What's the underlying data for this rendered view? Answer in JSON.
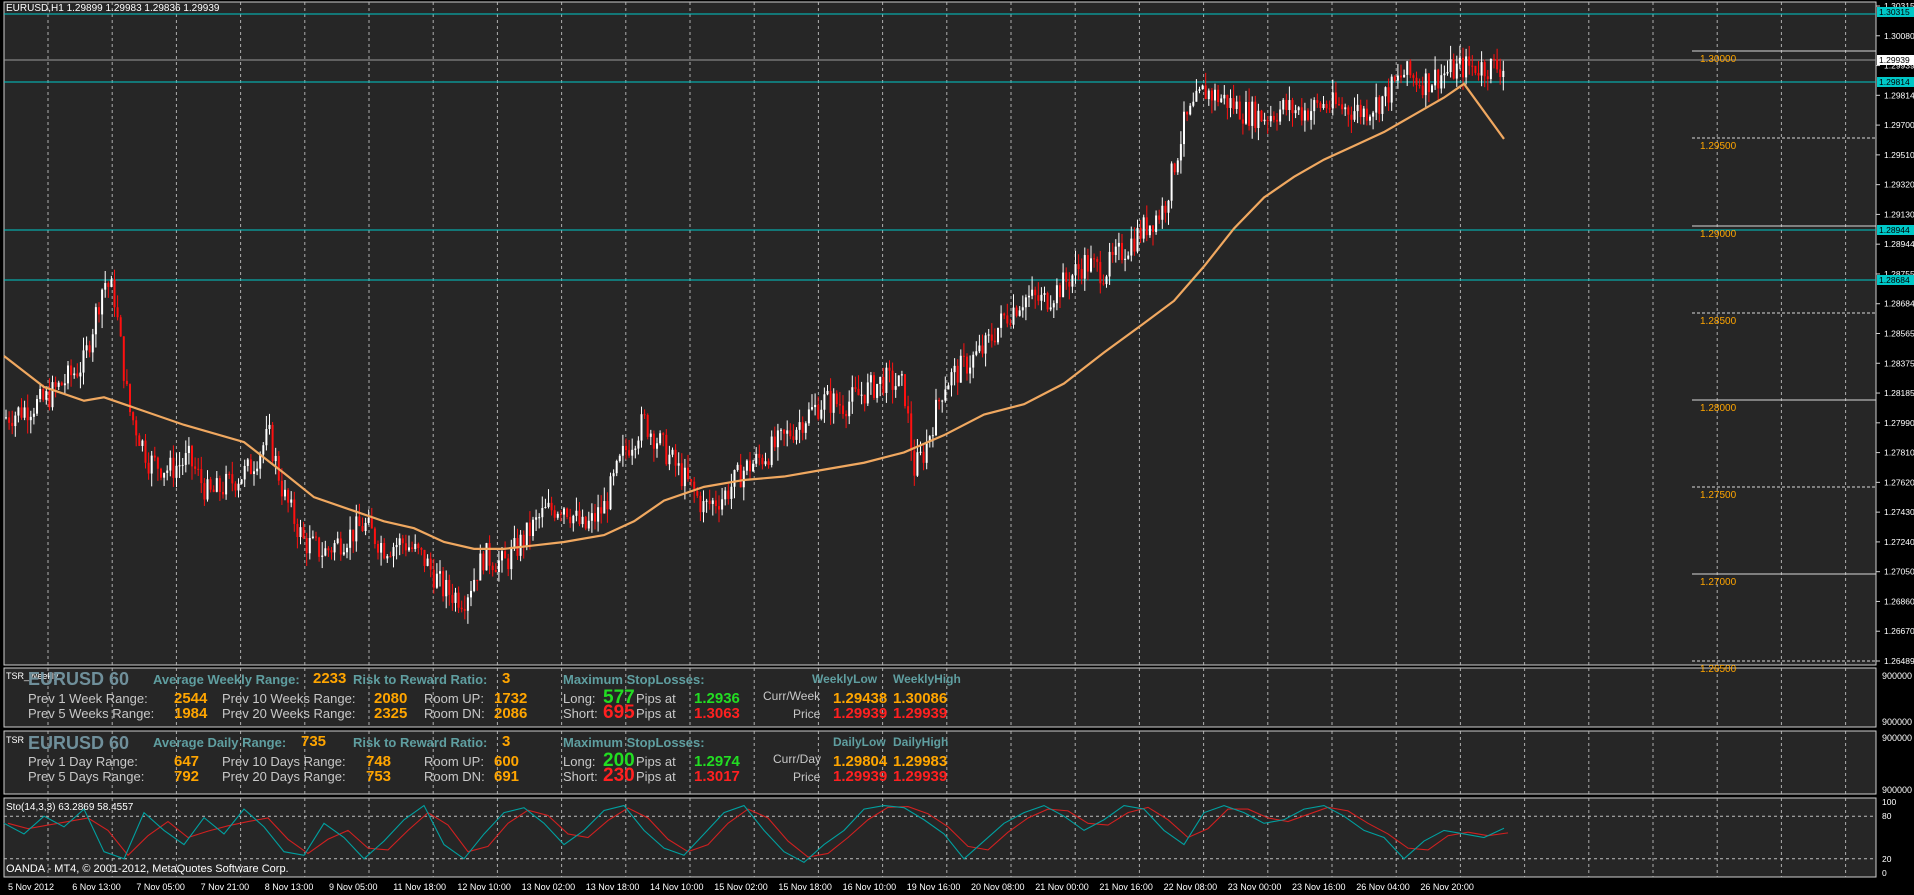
{
  "main_header": "EURUSD,H1  1.29899 1.29983 1.29836 1.29939",
  "stoch_header": "Sto(14,3,3) 63.2869 58.4557",
  "copyright": "OANDA - MT4, © 2001-2012, MetaQuotes Software Corp.",
  "colors": {
    "bg": "#000000",
    "plot": "#262626",
    "ma": "#f0a860",
    "cyan": "#00c8c8",
    "bull": "#ffffff",
    "bear": "#ff1010",
    "stoch_main": "#00a0a0",
    "stoch_signal": "#d02020"
  },
  "x_labels": [
    "5 Nov 2012",
    "6 Nov 13:00",
    "7 Nov 05:00",
    "7 Nov 21:00",
    "8 Nov 13:00",
    "9 Nov 05:00",
    "11 Nov 18:00",
    "12 Nov 10:00",
    "13 Nov 02:00",
    "13 Nov 18:00",
    "14 Nov 10:00",
    "15 Nov 02:00",
    "15 Nov 18:00",
    "16 Nov 10:00",
    "19 Nov 16:00",
    "20 Nov 08:00",
    "21 Nov 00:00",
    "21 Nov 16:00",
    "22 Nov 08:00",
    "23 Nov 00:00",
    "23 Nov 16:00",
    "26 Nov 04:00",
    "26 Nov 20:00"
  ],
  "y_labels": [
    "1.30315",
    "1.30080",
    "1.29939",
    "1.29814",
    "1.29700",
    "1.29510",
    "1.29320",
    "1.29130",
    "1.28944",
    "1.28755",
    "1.28684",
    "1.28565",
    "1.28375",
    "1.28185",
    "1.27990",
    "1.27810",
    "1.27620",
    "1.27430",
    "1.27240",
    "1.27050",
    "1.26860",
    "1.26670",
    "1.26489"
  ],
  "y_hl": [
    "1.30315",
    "1.29939",
    "1.29814",
    "1.28944",
    "1.28684"
  ],
  "level_labels": [
    "1.30000",
    "1.29500",
    "1.29000",
    "1.28500",
    "1.28000",
    "1.27500",
    "1.27000",
    "1.26500"
  ],
  "weekly": {
    "symbol": "EURUSD 60",
    "tag": "TSR_Weekly",
    "avg_label": "Average Weekly Range:",
    "avg_val": "2233",
    "rr_label": "Risk to Reward Ratio:",
    "rr_val": "3",
    "msl_label": "Maximum StopLosses:",
    "p1_label": "Prev 1 Week Range:",
    "p1_val": "2544",
    "p5_label": "Prev 5 Weeks Range:",
    "p5_val": "1984",
    "p10_label": "Prev 10 Weeks Range:",
    "p10_val": "2080",
    "p20_label": "Prev 20 Weeks Range:",
    "p20_val": "2325",
    "up_label": "Room UP:",
    "up_val": "1732",
    "dn_label": "Room DN:",
    "dn_val": "2086",
    "long_label": "Long:",
    "long_val": "577",
    "long_pips": "Pips at",
    "long_price": "1.2936",
    "short_label": "Short:",
    "short_val": "695",
    "short_pips": "Pips at",
    "short_price": "1.3063",
    "low_hdr": "WeeklyLow",
    "high_hdr": "WeeklyHigh",
    "cur_label": "Curr/Week",
    "price_label": "Price",
    "cur_low": "1.29438",
    "cur_high": "1.30086",
    "price_low": "1.29939",
    "price_high": "1.29939",
    "axis_top": "900000",
    "axis_bot": "900000"
  },
  "daily": {
    "symbol": "EURUSD 60",
    "tag": "TSR",
    "avg_label": "Average Daily Range:",
    "avg_val": "735",
    "rr_label": "Risk to Reward Ratio:",
    "rr_val": "3",
    "msl_label": "Maximum StopLosses:",
    "p1_label": "Prev 1 Day Range:",
    "p1_val": "647",
    "p5_label": "Prev 5 Days Range:",
    "p5_val": "792",
    "p10_label": "Prev 10 Days Range:",
    "p10_val": "748",
    "p20_label": "Prev 20 Days Range:",
    "p20_val": "753",
    "up_label": "Room UP:",
    "up_val": "600",
    "dn_label": "Room DN:",
    "dn_val": "691",
    "long_label": "Long:",
    "long_val": "200",
    "long_pips": "Pips at",
    "long_price": "1.2974",
    "short_label": "Short:",
    "short_val": "230",
    "short_pips": "Pips at",
    "short_price": "1.3017",
    "low_hdr": "DailyLow",
    "high_hdr": "DailyHigh",
    "cur_label": "Curr/Day",
    "price_label": "Price",
    "cur_low": "1.29804",
    "cur_high": "1.29983",
    "price_low": "1.29939",
    "price_high": "1.29939",
    "axis_top": "900000",
    "axis_bot": "900000"
  },
  "stoch_levels": [
    "100",
    "80",
    "20",
    "0"
  ],
  "chart_data": {
    "type": "line",
    "title": "EURUSD,H1",
    "y_range": [
      1.26489,
      1.30315
    ],
    "close_path": [
      [
        0,
        1.279
      ],
      [
        40,
        1.28
      ],
      [
        80,
        1.2822
      ],
      [
        100,
        1.287
      ],
      [
        110,
        1.2862
      ],
      [
        125,
        1.2795
      ],
      [
        145,
        1.2765
      ],
      [
        165,
        1.276
      ],
      [
        185,
        1.2766
      ],
      [
        205,
        1.2745
      ],
      [
        225,
        1.2752
      ],
      [
        245,
        1.276
      ],
      [
        265,
        1.278
      ],
      [
        280,
        1.2745
      ],
      [
        300,
        1.2718
      ],
      [
        320,
        1.2712
      ],
      [
        340,
        1.272
      ],
      [
        360,
        1.2728
      ],
      [
        380,
        1.2715
      ],
      [
        400,
        1.2718
      ],
      [
        420,
        1.2708
      ],
      [
        440,
        1.269
      ],
      [
        460,
        1.2685
      ],
      [
        480,
        1.271
      ],
      [
        500,
        1.2705
      ],
      [
        520,
        1.272
      ],
      [
        540,
        1.2735
      ],
      [
        560,
        1.274
      ],
      [
        580,
        1.2725
      ],
      [
        600,
        1.2738
      ],
      [
        620,
        1.277
      ],
      [
        640,
        1.2788
      ],
      [
        660,
        1.2772
      ],
      [
        680,
        1.2755
      ],
      [
        700,
        1.2738
      ],
      [
        720,
        1.2745
      ],
      [
        740,
        1.276
      ],
      [
        760,
        1.2768
      ],
      [
        780,
        1.2778
      ],
      [
        800,
        1.279
      ],
      [
        820,
        1.28
      ],
      [
        840,
        1.2798
      ],
      [
        860,
        1.2805
      ],
      [
        880,
        1.2812
      ],
      [
        900,
        1.2808
      ],
      [
        910,
        1.276
      ],
      [
        920,
        1.277
      ],
      [
        940,
        1.281
      ],
      [
        960,
        1.282
      ],
      [
        980,
        1.283
      ],
      [
        1000,
        1.2848
      ],
      [
        1020,
        1.286
      ],
      [
        1040,
        1.2858
      ],
      [
        1060,
        1.2868
      ],
      [
        1080,
        1.288
      ],
      [
        1100,
        1.2875
      ],
      [
        1120,
        1.2888
      ],
      [
        1140,
        1.29
      ],
      [
        1160,
        1.2912
      ],
      [
        1180,
        1.296
      ],
      [
        1200,
        1.298
      ],
      [
        1220,
        1.2975
      ],
      [
        1240,
        1.2968
      ],
      [
        1260,
        1.2965
      ],
      [
        1280,
        1.297
      ],
      [
        1300,
        1.2968
      ],
      [
        1320,
        1.2972
      ],
      [
        1340,
        1.297
      ],
      [
        1360,
        1.2968
      ],
      [
        1380,
        1.2976
      ],
      [
        1400,
        1.299
      ],
      [
        1420,
        1.2985
      ],
      [
        1440,
        1.299
      ],
      [
        1460,
        1.2994
      ]
    ],
    "ma_path": [
      [
        0,
        1.2826
      ],
      [
        40,
        1.2808
      ],
      [
        80,
        1.28
      ],
      [
        100,
        1.2802
      ],
      [
        130,
        1.2796
      ],
      [
        180,
        1.2786
      ],
      [
        240,
        1.2776
      ],
      [
        280,
        1.2758
      ],
      [
        310,
        1.2744
      ],
      [
        350,
        1.2736
      ],
      [
        380,
        1.273
      ],
      [
        410,
        1.2726
      ],
      [
        440,
        1.2718
      ],
      [
        470,
        1.2714
      ],
      [
        500,
        1.2714
      ],
      [
        530,
        1.2716
      ],
      [
        560,
        1.2718
      ],
      [
        600,
        1.2722
      ],
      [
        630,
        1.273
      ],
      [
        660,
        1.2742
      ],
      [
        700,
        1.275
      ],
      [
        740,
        1.2754
      ],
      [
        780,
        1.2756
      ],
      [
        820,
        1.276
      ],
      [
        860,
        1.2764
      ],
      [
        900,
        1.277
      ],
      [
        940,
        1.278
      ],
      [
        980,
        1.2792
      ],
      [
        1020,
        1.2798
      ],
      [
        1060,
        1.281
      ],
      [
        1100,
        1.2828
      ],
      [
        1140,
        1.2845
      ],
      [
        1170,
        1.2858
      ],
      [
        1200,
        1.2878
      ],
      [
        1230,
        1.29
      ],
      [
        1260,
        1.2918
      ],
      [
        1290,
        1.293
      ],
      [
        1320,
        1.294
      ],
      [
        1350,
        1.2948
      ],
      [
        1380,
        1.2956
      ],
      [
        1410,
        1.2966
      ],
      [
        1440,
        1.2976
      ],
      [
        1460,
        1.2984
      ],
      [
        1500,
        1.2952
      ]
    ],
    "stoch_main": [
      [
        0,
        70
      ],
      [
        20,
        55
      ],
      [
        40,
        80
      ],
      [
        60,
        65
      ],
      [
        80,
        90
      ],
      [
        100,
        30
      ],
      [
        120,
        20
      ],
      [
        140,
        85
      ],
      [
        160,
        60
      ],
      [
        180,
        40
      ],
      [
        200,
        78
      ],
      [
        220,
        55
      ],
      [
        240,
        90
      ],
      [
        260,
        65
      ],
      [
        280,
        30
      ],
      [
        300,
        25
      ],
      [
        320,
        70
      ],
      [
        340,
        50
      ],
      [
        360,
        20
      ],
      [
        380,
        45
      ],
      [
        400,
        75
      ],
      [
        420,
        95
      ],
      [
        440,
        40
      ],
      [
        460,
        20
      ],
      [
        480,
        55
      ],
      [
        500,
        85
      ],
      [
        520,
        92
      ],
      [
        540,
        70
      ],
      [
        560,
        40
      ],
      [
        580,
        60
      ],
      [
        600,
        88
      ],
      [
        620,
        95
      ],
      [
        640,
        60
      ],
      [
        660,
        35
      ],
      [
        680,
        25
      ],
      [
        700,
        55
      ],
      [
        720,
        85
      ],
      [
        740,
        95
      ],
      [
        760,
        60
      ],
      [
        780,
        30
      ],
      [
        800,
        15
      ],
      [
        820,
        40
      ],
      [
        840,
        60
      ],
      [
        860,
        90
      ],
      [
        880,
        95
      ],
      [
        900,
        92
      ],
      [
        920,
        75
      ],
      [
        940,
        55
      ],
      [
        960,
        20
      ],
      [
        980,
        45
      ],
      [
        1000,
        70
      ],
      [
        1020,
        85
      ],
      [
        1040,
        95
      ],
      [
        1060,
        80
      ],
      [
        1080,
        60
      ],
      [
        1100,
        75
      ],
      [
        1120,
        95
      ],
      [
        1140,
        90
      ],
      [
        1160,
        60
      ],
      [
        1180,
        40
      ],
      [
        1200,
        85
      ],
      [
        1220,
        95
      ],
      [
        1240,
        85
      ],
      [
        1260,
        70
      ],
      [
        1280,
        75
      ],
      [
        1300,
        90
      ],
      [
        1320,
        95
      ],
      [
        1340,
        80
      ],
      [
        1360,
        60
      ],
      [
        1380,
        50
      ],
      [
        1400,
        20
      ],
      [
        1420,
        45
      ],
      [
        1440,
        60
      ],
      [
        1460,
        55
      ],
      [
        1480,
        50
      ],
      [
        1500,
        63
      ]
    ]
  }
}
